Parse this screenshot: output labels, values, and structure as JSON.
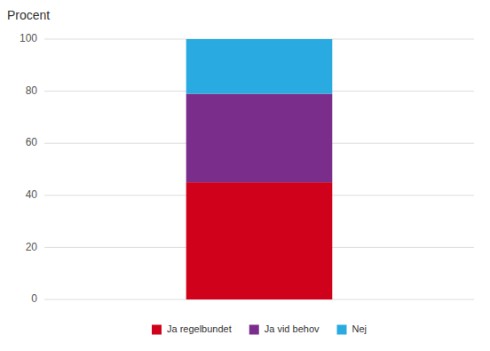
{
  "chart_data": {
    "type": "bar",
    "stacked": true,
    "ylabel": "Procent",
    "categories": [
      null
    ],
    "series": [
      {
        "name": "Ja regelbundet",
        "color": "#d0021b",
        "values": [
          45
        ]
      },
      {
        "name": "Ja vid behov",
        "color": "#7b2d8b",
        "values": [
          34
        ]
      },
      {
        "name": "Nej",
        "color": "#29abe2",
        "values": [
          21
        ]
      }
    ],
    "ylim": [
      0,
      100
    ],
    "yticks": [
      0,
      20,
      40,
      60,
      80,
      100
    ],
    "grid": true,
    "legend": "bottom",
    "tick_labels": "y"
  }
}
